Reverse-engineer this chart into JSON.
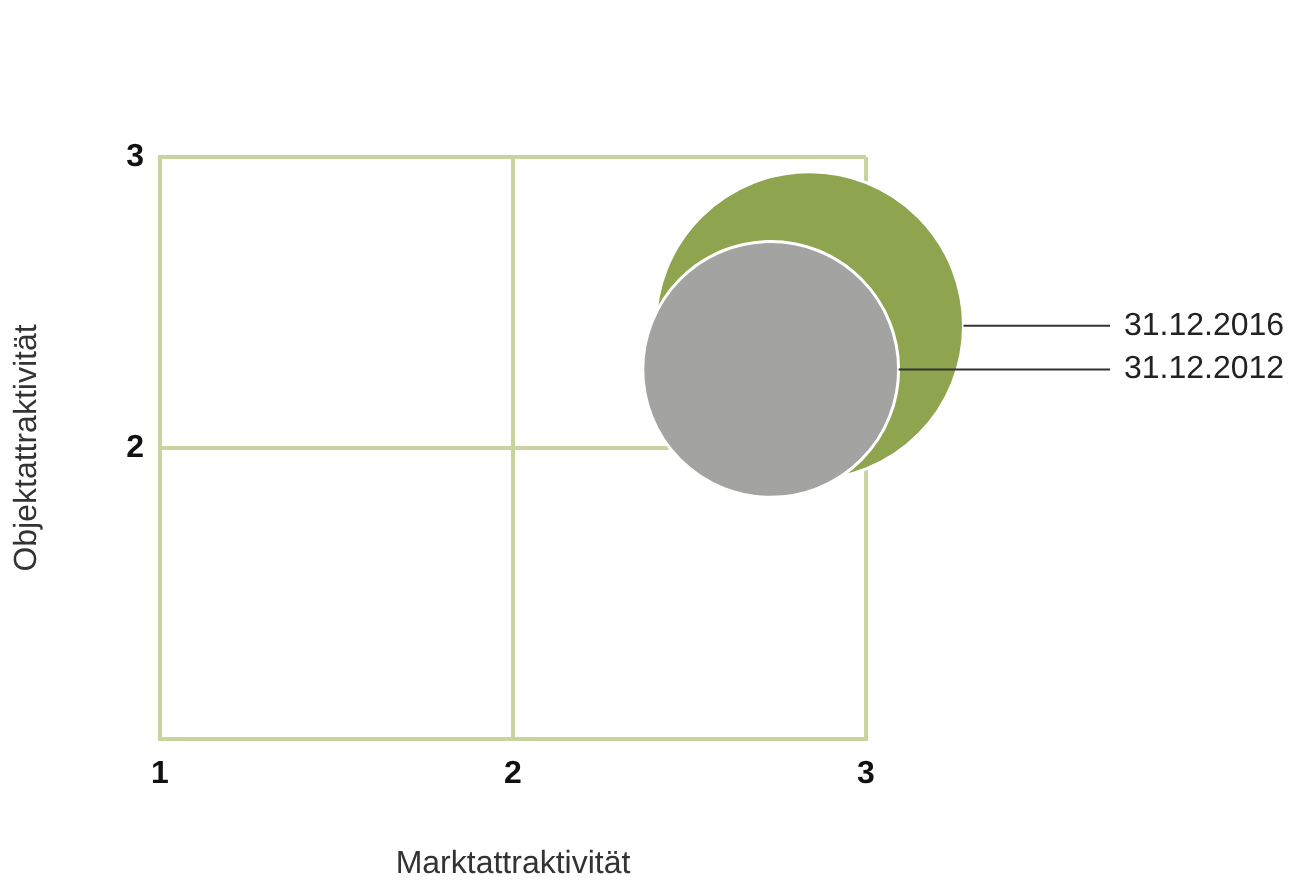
{
  "chart_data": {
    "type": "bubble",
    "xlabel": "Marktattraktivität",
    "ylabel": "Objektattraktivität",
    "xlim": [
      1,
      3
    ],
    "ylim": [
      1,
      3
    ],
    "xticks": [
      1,
      2,
      3
    ],
    "yticks": [
      2,
      3
    ],
    "grid": true,
    "legend": false,
    "series": [
      {
        "name": "31.12.2016",
        "color": "#8fa44e",
        "x": [
          2.84
        ],
        "values": [
          2.42
        ],
        "sizes": [
          1
        ]
      },
      {
        "name": "31.12.2012",
        "color": "#a3a4a2",
        "x": [
          2.73
        ],
        "values": [
          2.27
        ],
        "sizes": [
          0.69
        ]
      }
    ]
  }
}
